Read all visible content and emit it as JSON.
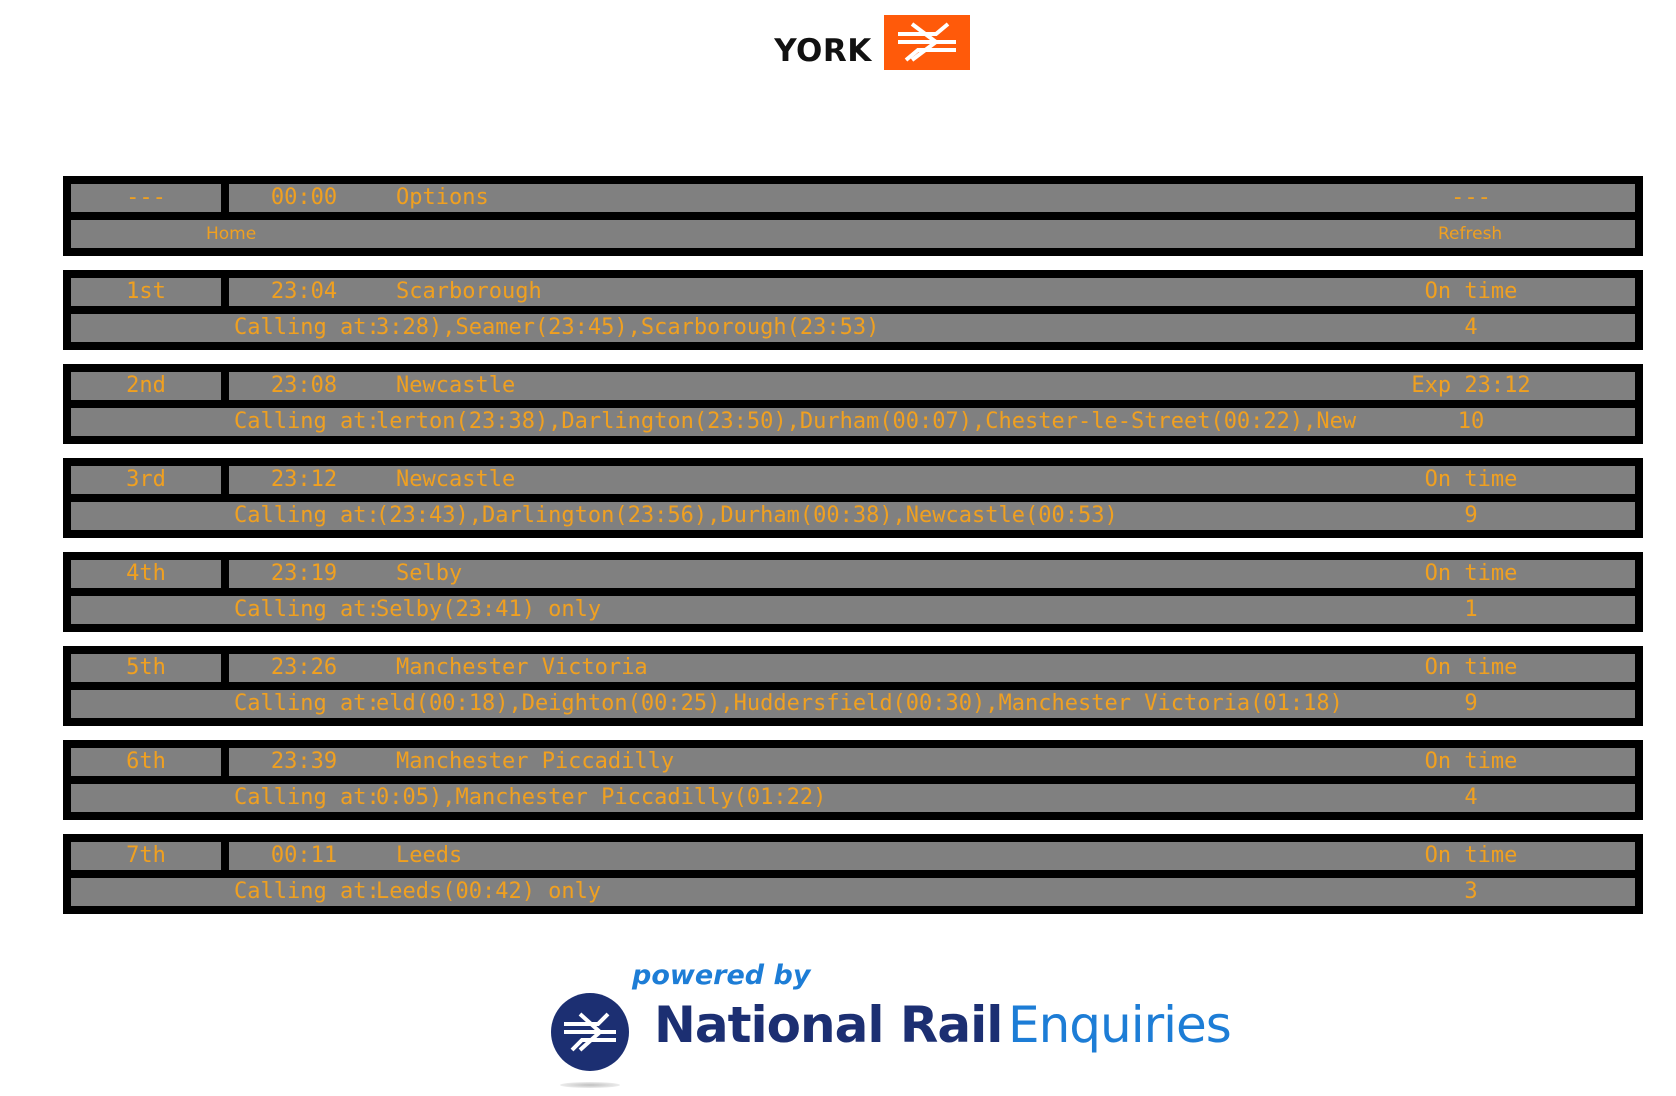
{
  "header": {
    "station": "YORK",
    "logo_color": "#ff5a0a"
  },
  "nav": {
    "pos": "---",
    "time": "00:00",
    "title": "Options",
    "status": "---",
    "home": "Home",
    "refresh": "Refresh"
  },
  "calling_label": "Calling at:",
  "services": [
    {
      "pos": "1st",
      "time": "23:04",
      "dest": "Scarborough",
      "status": "On time",
      "calling": "3:28),Seamer(23:45),Scarborough(23:53)",
      "platform": "4"
    },
    {
      "pos": "2nd",
      "time": "23:08",
      "dest": "Newcastle",
      "status": "Exp 23:12",
      "calling": "lerton(23:38),Darlington(23:50),Durham(00:07),Chester-le-Street(00:22),New",
      "platform": "10"
    },
    {
      "pos": "3rd",
      "time": "23:12",
      "dest": "Newcastle",
      "status": "On time",
      "calling": "(23:43),Darlington(23:56),Durham(00:38),Newcastle(00:53)",
      "platform": "9"
    },
    {
      "pos": "4th",
      "time": "23:19",
      "dest": "Selby",
      "status": "On time",
      "calling": " Selby(23:41) only",
      "platform": "1"
    },
    {
      "pos": "5th",
      "time": "23:26",
      "dest": "Manchester Victoria",
      "status": "On time",
      "calling": "eld(00:18),Deighton(00:25),Huddersfield(00:30),Manchester Victoria(01:18)",
      "platform": "9"
    },
    {
      "pos": "6th",
      "time": "23:39",
      "dest": "Manchester Piccadilly",
      "status": "On time",
      "calling": "0:05),Manchester Piccadilly(01:22)",
      "platform": "4"
    },
    {
      "pos": "7th",
      "time": "00:11",
      "dest": "Leeds",
      "status": "On time",
      "calling": " Leeds(00:42) only",
      "platform": "3"
    }
  ],
  "footer": {
    "powered_by": "powered by",
    "brand_bold": "National Rail",
    "brand_light": "Enquiries",
    "brand_dark_color": "#1c2f72",
    "brand_light_color": "#1d7dd6"
  },
  "colors": {
    "board_bg": "#000000",
    "row_bg": "#808080",
    "text_amber": "#f0a020"
  }
}
